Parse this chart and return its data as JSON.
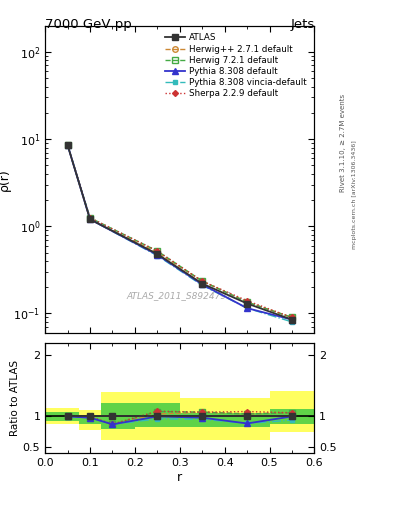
{
  "title": "7000 GeV pp",
  "title_right": "Jets",
  "ylabel_main": "ρ(r)",
  "ylabel_ratio": "Ratio to ATLAS",
  "xlabel": "r",
  "watermark": "ATLAS_2011_S8924791",
  "right_label": "Rivet 3.1.10, ≥ 2.7M events",
  "right_label2": "mcplots.cern.ch [arXiv:1306.3436]",
  "r_values": [
    0.05,
    0.1,
    0.25,
    0.35,
    0.45,
    0.55
  ],
  "atlas_y": [
    8.5,
    1.2,
    0.48,
    0.22,
    0.13,
    0.085
  ],
  "herwig271_y": [
    8.5,
    1.2,
    0.5,
    0.235,
    0.135,
    0.09
  ],
  "herwig721_y": [
    8.5,
    1.25,
    0.52,
    0.235,
    0.135,
    0.09
  ],
  "pythia8308_y": [
    8.5,
    1.2,
    0.47,
    0.215,
    0.115,
    0.085
  ],
  "pythia8308v_y": [
    8.5,
    1.2,
    0.46,
    0.21,
    0.115,
    0.08
  ],
  "sherpa229_y": [
    8.5,
    1.25,
    0.52,
    0.235,
    0.14,
    0.09
  ],
  "ratio_r": [
    0.05,
    0.1,
    0.15,
    0.25,
    0.35,
    0.45,
    0.55
  ],
  "atlas_ratio": [
    1.0,
    1.0,
    1.0,
    1.0,
    1.0,
    1.0,
    1.0
  ],
  "herwig271_ratio": [
    1.0,
    0.975,
    0.87,
    1.04,
    1.07,
    1.04,
    1.06
  ],
  "herwig721_ratio": [
    1.0,
    0.98,
    0.87,
    1.08,
    1.07,
    1.04,
    1.06
  ],
  "pythia8308_ratio": [
    1.0,
    0.98,
    0.87,
    1.0,
    0.98,
    0.885,
    1.0
  ],
  "pythia8308v_ratio": [
    1.0,
    0.975,
    0.87,
    0.96,
    0.955,
    0.885,
    0.94
  ],
  "sherpa229_ratio": [
    1.0,
    1.0,
    0.875,
    1.085,
    1.07,
    1.08,
    1.06
  ],
  "band_green_lo": [
    0.93,
    0.87,
    0.8,
    0.82,
    0.82,
    0.82,
    0.88
  ],
  "band_green_hi": [
    1.07,
    1.0,
    1.22,
    1.22,
    1.05,
    1.05,
    1.12
  ],
  "band_yellow_lo": [
    0.87,
    0.78,
    0.62,
    0.62,
    0.62,
    0.62,
    0.75
  ],
  "band_yellow_hi": [
    1.13,
    1.1,
    1.4,
    1.4,
    1.3,
    1.3,
    1.42
  ],
  "band_r_edges": [
    0.0,
    0.075,
    0.125,
    0.2,
    0.3,
    0.4,
    0.5,
    0.6
  ],
  "color_atlas": "#333333",
  "color_herwig271": "#cc8833",
  "color_herwig721": "#44aa44",
  "color_pythia8308": "#3333cc",
  "color_pythia8308v": "#33bbbb",
  "color_sherpa229": "#cc3333",
  "ylim_main": [
    0.06,
    200
  ],
  "ylim_ratio": [
    0.4,
    2.2
  ],
  "yticks_ratio": [
    0.5,
    1.0,
    2.0
  ],
  "yticklabels_ratio": [
    "0.5",
    "1",
    "2"
  ]
}
